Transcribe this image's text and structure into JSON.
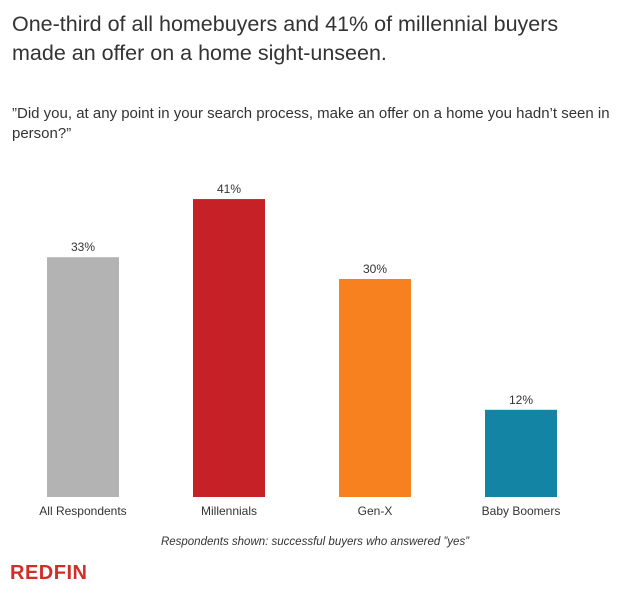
{
  "chart_data": {
    "type": "bar",
    "title": "One-third of all homebuyers and 41% of millennial buyers made an offer on a home sight-unseen.",
    "subtitle": "”Did you, at any point in your search process, make an offer on a home you hadn’t seen in person?”",
    "categories": [
      "All Respondents",
      "Millennials",
      "Gen-X",
      "Baby Boomers"
    ],
    "values": [
      33,
      41,
      30,
      12
    ],
    "value_labels": [
      "33%",
      "41%",
      "30%",
      "12%"
    ],
    "colors": [
      "#b3b3b3",
      "#c62127",
      "#f7801f",
      "#1384a4"
    ],
    "ylim": [
      0,
      45
    ],
    "grid": false,
    "xlabel": "",
    "ylabel": "",
    "footnote": "Respondents shown: successful buyers who answered ”yes”"
  },
  "brand": {
    "logo_text": "REDFIN",
    "color": "#d12e2a"
  }
}
